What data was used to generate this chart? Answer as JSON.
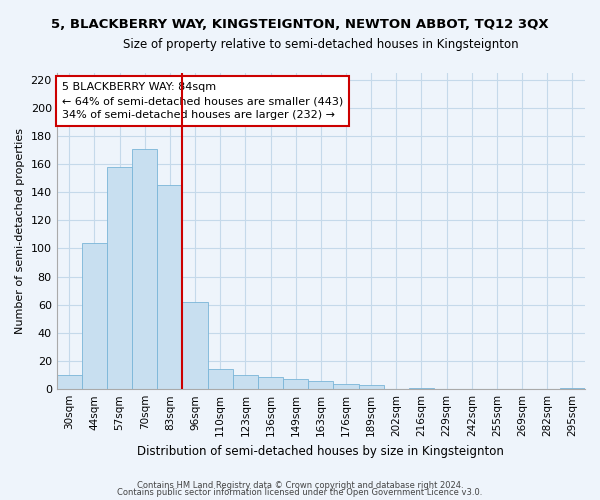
{
  "title": "5, BLACKBERRY WAY, KINGSTEIGNTON, NEWTON ABBOT, TQ12 3QX",
  "subtitle": "Size of property relative to semi-detached houses in Kingsteignton",
  "xlabel": "Distribution of semi-detached houses by size in Kingsteignton",
  "ylabel": "Number of semi-detached properties",
  "bar_labels": [
    "30sqm",
    "44sqm",
    "57sqm",
    "70sqm",
    "83sqm",
    "96sqm",
    "110sqm",
    "123sqm",
    "136sqm",
    "149sqm",
    "163sqm",
    "176sqm",
    "189sqm",
    "202sqm",
    "216sqm",
    "229sqm",
    "242sqm",
    "255sqm",
    "269sqm",
    "282sqm",
    "295sqm"
  ],
  "bar_values": [
    10,
    104,
    158,
    171,
    145,
    62,
    14,
    10,
    9,
    7,
    6,
    4,
    3,
    0,
    1,
    0,
    0,
    0,
    0,
    0,
    1
  ],
  "bar_color": "#c8dff0",
  "bar_edge_color": "#7ab5d8",
  "property_line_index": 4,
  "property_line_color": "#cc0000",
  "annotation_title": "5 BLACKBERRY WAY: 84sqm",
  "annotation_line1": "← 64% of semi-detached houses are smaller (443)",
  "annotation_line2": "34% of semi-detached houses are larger (232) →",
  "annotation_box_color": "#ffffff",
  "annotation_box_edge": "#cc0000",
  "ylim": [
    0,
    225
  ],
  "yticks": [
    0,
    20,
    40,
    60,
    80,
    100,
    120,
    140,
    160,
    180,
    200,
    220
  ],
  "footer1": "Contains HM Land Registry data © Crown copyright and database right 2024.",
  "footer2": "Contains public sector information licensed under the Open Government Licence v3.0.",
  "background_color": "#eef4fb",
  "grid_color": "#c5d9ea"
}
